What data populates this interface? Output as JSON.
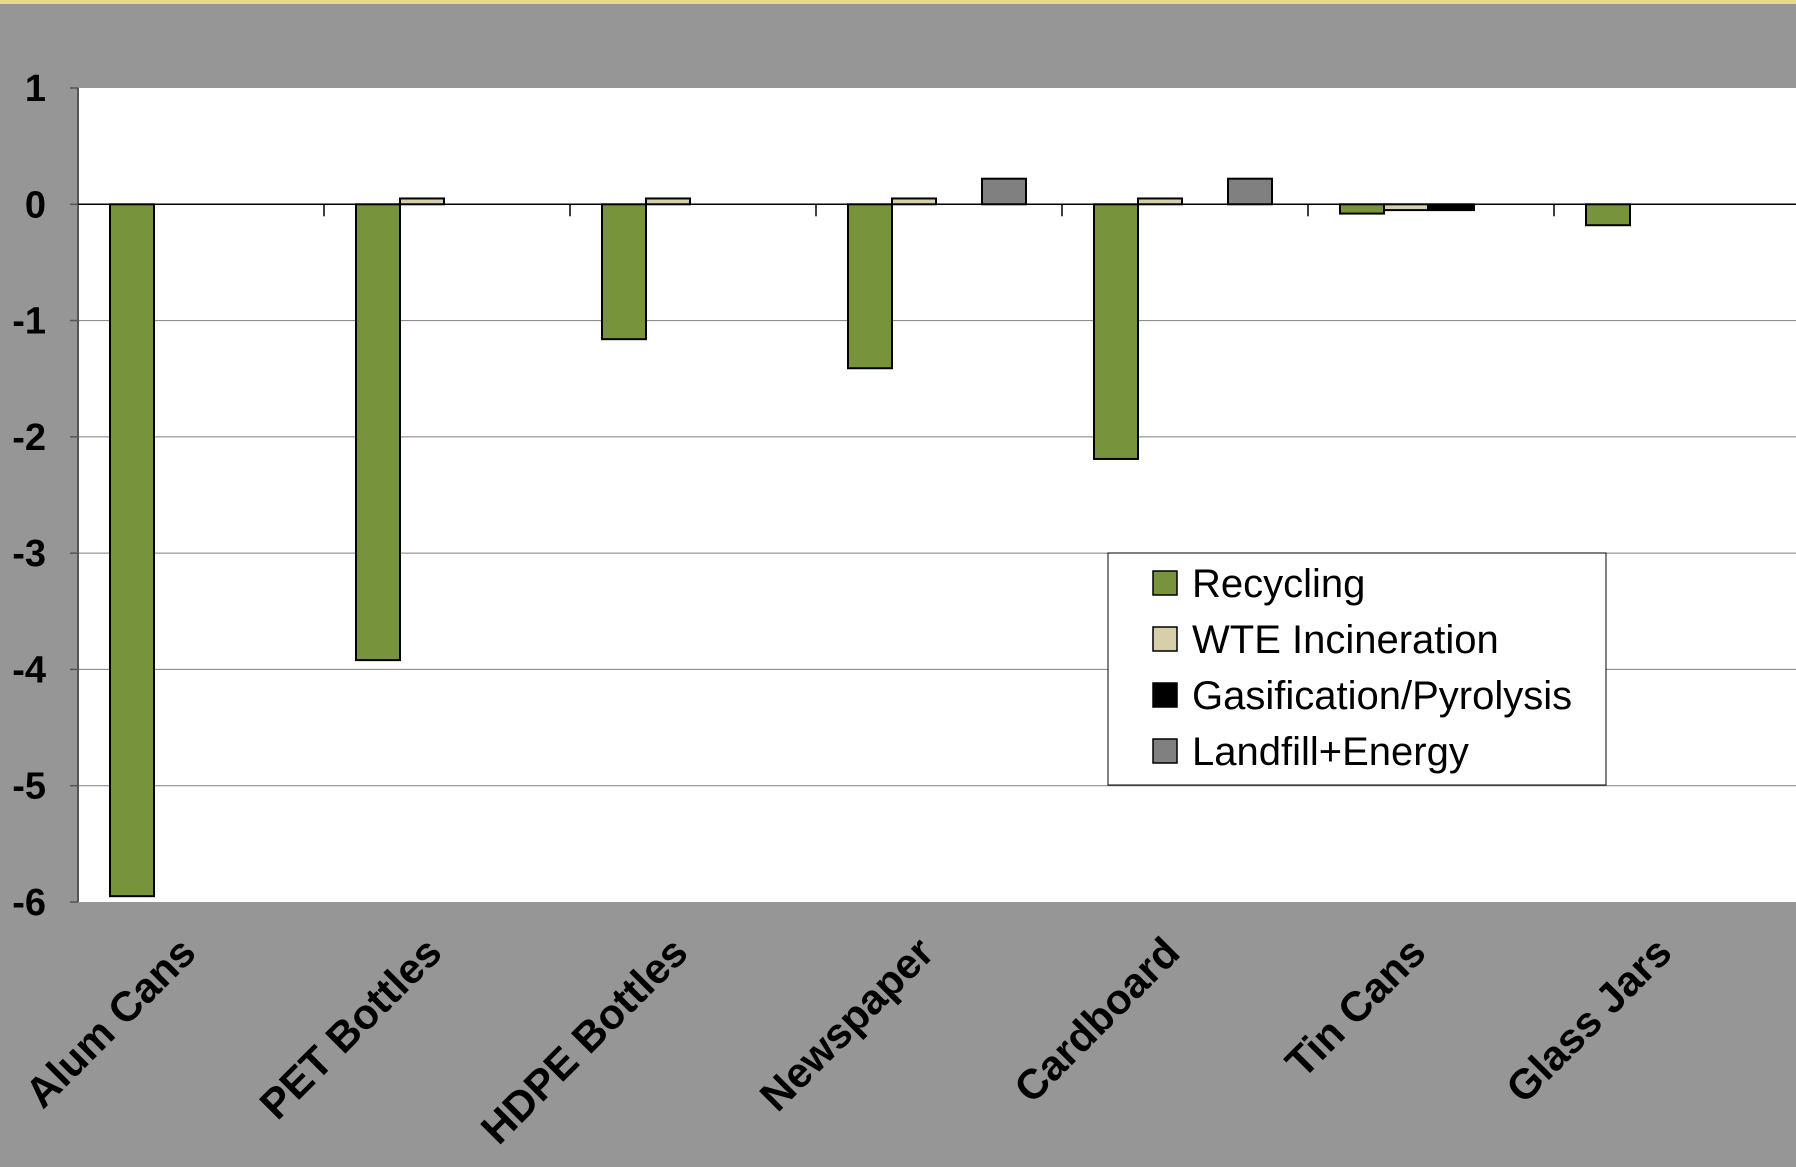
{
  "chart_data": {
    "type": "bar",
    "categories": [
      "Alum Cans",
      "PET Bottles",
      "HDPE Bottles",
      "Newspaper",
      "Cardboard",
      "Tin Cans",
      "Glass Jars"
    ],
    "series": [
      {
        "name": "Recycling",
        "color": "#77933c",
        "values": [
          -5.95,
          -3.92,
          -1.16,
          -1.41,
          -2.19,
          -0.08,
          -0.18
        ]
      },
      {
        "name": "WTE Incineration",
        "color": "#d6cfaa",
        "values": [
          0,
          0.05,
          0.05,
          0.05,
          0.05,
          -0.05,
          0
        ]
      },
      {
        "name": "Gasification/Pyrolysis",
        "color": "#000000",
        "values": [
          0,
          0,
          0,
          0,
          0,
          -0.05,
          0
        ]
      },
      {
        "name": "Landfill+Energy",
        "color": "#808080",
        "values": [
          0,
          0,
          0,
          0.22,
          0.22,
          0,
          0
        ]
      }
    ],
    "y_ticks": [
      "1",
      "0",
      "-1",
      "-2",
      "-3",
      "-4",
      "-5",
      "-6"
    ],
    "ylim": [
      -6,
      1
    ],
    "grid": true,
    "legend_position": "center-right",
    "title": "",
    "xlabel": "",
    "ylabel": ""
  },
  "colors": {
    "page_background": "#969696",
    "plot_background": "#ffffff",
    "top_border": "#e4dc8a"
  }
}
